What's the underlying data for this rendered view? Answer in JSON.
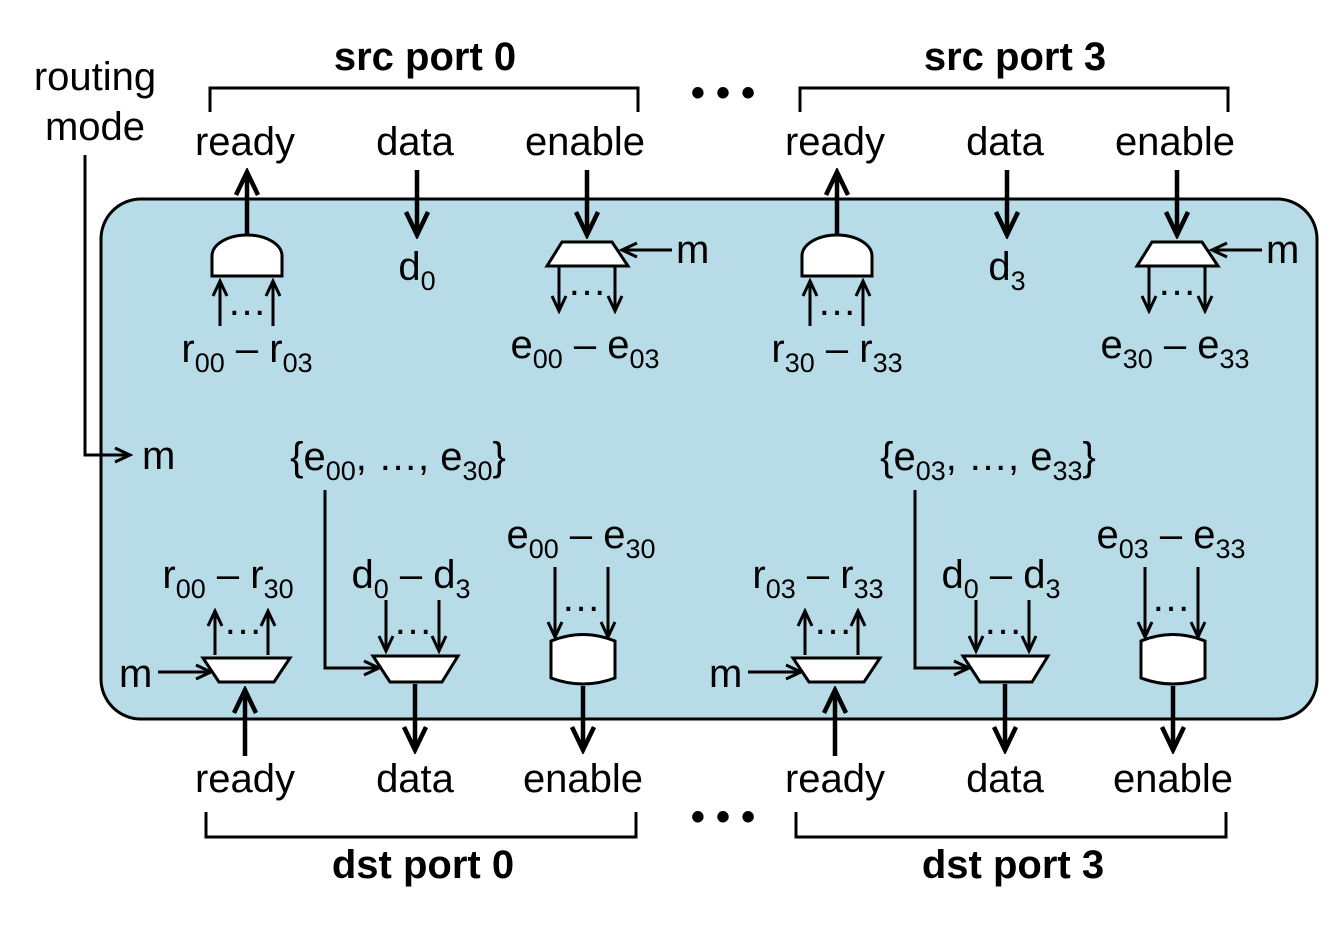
{
  "colors": {
    "box_fill": "#b7dce7",
    "stroke": "#000000",
    "gate_fill": "#ffffff"
  },
  "routing_mode": {
    "line1": "routing",
    "line2": "mode",
    "m": "m"
  },
  "src_ports": [
    {
      "title": "src port 0",
      "ready": "ready",
      "data": "data",
      "enable": "enable",
      "d": {
        "base": "d",
        "sub": "0"
      },
      "m": "m",
      "r_range": {
        "a_base": "r",
        "a_sub": "00",
        "dash": "–",
        "b_base": "r",
        "b_sub": "03"
      },
      "e_range": {
        "a_base": "e",
        "a_sub": "00",
        "dash": "–",
        "b_base": "e",
        "b_sub": "03"
      }
    },
    {
      "title": "src port 3",
      "ready": "ready",
      "data": "data",
      "enable": "enable",
      "d": {
        "base": "d",
        "sub": "3"
      },
      "m": "m",
      "r_range": {
        "a_base": "r",
        "a_sub": "30",
        "dash": "–",
        "b_base": "r",
        "b_sub": "33"
      },
      "e_range": {
        "a_base": "e",
        "a_sub": "30",
        "dash": "–",
        "b_base": "e",
        "b_sub": "33"
      }
    }
  ],
  "dst_ports": [
    {
      "title": "dst port 0",
      "ready": "ready",
      "data": "data",
      "enable": "enable",
      "m": "m",
      "set": {
        "open": "{",
        "a_base": "e",
        "a_sub": "00",
        "mid": ", …, ",
        "b_base": "e",
        "b_sub": "30",
        "close": "}"
      },
      "r_range": {
        "a_base": "r",
        "a_sub": "00",
        "dash": "–",
        "b_base": "r",
        "b_sub": "30"
      },
      "d_range": {
        "a_base": "d",
        "a_sub": "0",
        "dash": "–",
        "b_base": "d",
        "b_sub": "3"
      },
      "e_range": {
        "a_base": "e",
        "a_sub": "00",
        "dash": "–",
        "b_base": "e",
        "b_sub": "30"
      }
    },
    {
      "title": "dst port 3",
      "ready": "ready",
      "data": "data",
      "enable": "enable",
      "m": "m",
      "set": {
        "open": "{",
        "a_base": "e",
        "a_sub": "03",
        "mid": ", …, ",
        "b_base": "e",
        "b_sub": "33",
        "close": "}"
      },
      "r_range": {
        "a_base": "r",
        "a_sub": "03",
        "dash": "–",
        "b_base": "r",
        "b_sub": "33"
      },
      "d_range": {
        "a_base": "d",
        "a_sub": "0",
        "dash": "–",
        "b_base": "d",
        "b_sub": "3"
      },
      "e_range": {
        "a_base": "e",
        "a_sub": "03",
        "dash": "–",
        "b_base": "e",
        "b_sub": "33"
      }
    }
  ],
  "ellipsis": "…",
  "ellipsis_wide": "• • •"
}
